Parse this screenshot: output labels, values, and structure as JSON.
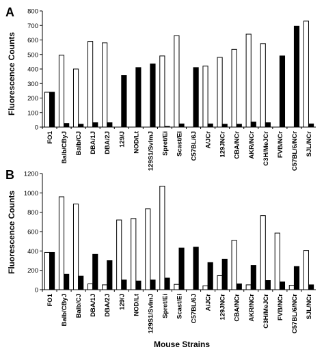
{
  "figure": {
    "xlabel": "Mouse Strains"
  },
  "chart_data": [
    {
      "type": "bar",
      "panel": "A",
      "ylabel": "Fluorescence Counts",
      "xlabel": "",
      "ylim": [
        0,
        800
      ],
      "yticks": [
        0,
        100,
        200,
        300,
        400,
        500,
        600,
        700,
        800
      ],
      "categories": [
        "FO1",
        "Balb/CByJ",
        "Balb/CJ",
        "DBA/1J",
        "DBA/2J",
        "129/J",
        "NOD/Lt",
        "129S1/SvImJ",
        "Spret/Ei",
        "Scast/Ei",
        "C57BL/6J",
        "A/JCr",
        "129JNCr",
        "CBA/NCr",
        "AKR/NCr",
        "C3H/MeJCr",
        "FVB/NCr",
        "C57BL/6/NCr",
        "SJL/NCr"
      ],
      "series": [
        {
          "fill": "#ffffff",
          "values": [
            240,
            495,
            400,
            590,
            580,
            0,
            0,
            0,
            490,
            630,
            0,
            420,
            480,
            535,
            640,
            575,
            0,
            0,
            730
          ]
        },
        {
          "fill": "#000000",
          "values": [
            240,
            25,
            20,
            30,
            30,
            355,
            410,
            435,
            5,
            22,
            410,
            22,
            20,
            20,
            35,
            30,
            490,
            695,
            22
          ]
        }
      ]
    },
    {
      "type": "bar",
      "panel": "B",
      "ylabel": "Fluorescence Counts",
      "xlabel": "Mouse Strains",
      "ylim": [
        0,
        1200
      ],
      "yticks": [
        0,
        200,
        400,
        600,
        800,
        1000,
        1200
      ],
      "categories": [
        "FO1",
        "Balb/CByJ",
        "Balb/CJ",
        "DBA/1J",
        "DBA/2J",
        "129/J",
        "NOD/Lt",
        "129S1/SvImJ",
        "Spret/Ei",
        "Scast/Ei",
        "C57BL/6J",
        "A/JCr",
        "129JNCr",
        "CBA/NCr",
        "AKR/NCr",
        "C3H/MeJCr",
        "FVB/NCr",
        "C57BL/6/NCr",
        "SJL/NCr"
      ],
      "series": [
        {
          "fill": "#ffffff",
          "values": [
            385,
            960,
            885,
            60,
            50,
            720,
            735,
            835,
            1070,
            55,
            0,
            40,
            145,
            510,
            50,
            765,
            585,
            45,
            405
          ]
        },
        {
          "fill": "#000000",
          "values": [
            385,
            160,
            140,
            365,
            300,
            100,
            90,
            100,
            120,
            430,
            440,
            280,
            315,
            60,
            250,
            95,
            80,
            240,
            50
          ]
        }
      ]
    }
  ]
}
